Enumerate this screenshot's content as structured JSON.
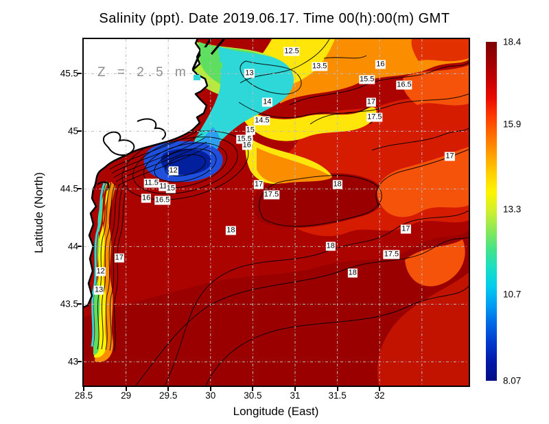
{
  "title": "Salinity (ppt). Date 2019.06.17. Time 00(h):00(m) GMT",
  "annotation": "Z = 2.5 m",
  "axes": {
    "x_label": "Longitude (East)",
    "y_label": "Latitude (North)",
    "x_ticks": [
      28.5,
      29,
      29.5,
      30,
      30.5,
      31,
      31.5,
      32
    ],
    "y_ticks": [
      45.5,
      45,
      44.5,
      44,
      43.5,
      43
    ],
    "grid_lons": [
      29,
      29.5,
      30,
      30.5,
      31,
      31.5,
      32,
      32.5
    ],
    "grid_lats": [
      45.5,
      45,
      44.5,
      44,
      43.5,
      43
    ]
  },
  "colorbar": {
    "min": 8.07,
    "max": 18.4,
    "ticks": [
      {
        "value": 18.4,
        "label": "18.4"
      },
      {
        "value": 15.9,
        "label": "15.9"
      },
      {
        "value": 13.3,
        "label": "13.3"
      },
      {
        "value": 10.7,
        "label": "10.7"
      },
      {
        "value": 8.07,
        "label": "8.07"
      }
    ],
    "gradient_top_to_bottom": [
      "#7e0000",
      "#9e0000",
      "#c40000",
      "#ea0c00",
      "#ff3c00",
      "#ff6f00",
      "#ffa000",
      "#ffd000",
      "#fdf500",
      "#cfef2f",
      "#8ae857",
      "#45e389",
      "#19dfc4",
      "#00ccee",
      "#009cf4",
      "#0066e4",
      "#0038cc",
      "#0018a8",
      "#000d86"
    ]
  },
  "map_colors": {
    "land": "#ffffff",
    "coastline": "#000000",
    "grid": "#bcbcbc",
    "deep_red_max_salinity": "#9a0000",
    "river_plume_blue": "#02209e"
  },
  "chart_data": {
    "type": "heatmap",
    "variable": "Salinity (ppt)",
    "date": "2019.06.17",
    "time": "00(h):00(m) GMT",
    "depth_m": 2.5,
    "title": "Salinity (ppt). Date 2019.06.17. Time 00(h):00(m) GMT",
    "xlabel": "Longitude (East)",
    "ylabel": "Latitude (North)",
    "x_range_east": [
      28.5,
      33.05
    ],
    "y_range_north": [
      42.8,
      45.8
    ],
    "value_range_ppt": [
      8.07,
      18.4
    ],
    "colorbar_labels": [
      18.4,
      15.9,
      13.3,
      10.7,
      8.07
    ],
    "contour_interval_ppt": 0.5,
    "grid_on": true,
    "legend_position": "right-colorbar",
    "contour_labels": [
      {
        "value": "12.5",
        "lon": 30.96,
        "lat": 45.69
      },
      {
        "value": "13",
        "lon": 30.46,
        "lat": 45.5
      },
      {
        "value": "13.5",
        "lon": 31.29,
        "lat": 45.56
      },
      {
        "value": "16",
        "lon": 32.01,
        "lat": 45.58
      },
      {
        "value": "15.5",
        "lon": 31.85,
        "lat": 45.45
      },
      {
        "value": "16.5",
        "lon": 32.29,
        "lat": 45.4
      },
      {
        "value": "14",
        "lon": 30.67,
        "lat": 45.25
      },
      {
        "value": "17",
        "lon": 31.9,
        "lat": 45.25
      },
      {
        "value": "17.5",
        "lon": 31.94,
        "lat": 45.12
      },
      {
        "value": "14.5",
        "lon": 30.61,
        "lat": 45.09
      },
      {
        "value": "15",
        "lon": 30.47,
        "lat": 45.01
      },
      {
        "value": "15.5",
        "lon": 30.4,
        "lat": 44.93
      },
      {
        "value": "16",
        "lon": 30.43,
        "lat": 44.88
      },
      {
        "value": "12",
        "lon": 29.56,
        "lat": 44.66
      },
      {
        "value": "11.5",
        "lon": 29.3,
        "lat": 44.55
      },
      {
        "value": "11",
        "lon": 29.44,
        "lat": 44.52
      },
      {
        "value": "15",
        "lon": 29.53,
        "lat": 44.5
      },
      {
        "value": "16",
        "lon": 29.24,
        "lat": 44.42
      },
      {
        "value": "16.5",
        "lon": 29.43,
        "lat": 44.4
      },
      {
        "value": "17",
        "lon": 32.83,
        "lat": 44.78
      },
      {
        "value": "17",
        "lon": 30.57,
        "lat": 44.54
      },
      {
        "value": "17.5",
        "lon": 30.72,
        "lat": 44.45
      },
      {
        "value": "18",
        "lon": 31.5,
        "lat": 44.54
      },
      {
        "value": "18",
        "lon": 30.24,
        "lat": 44.14
      },
      {
        "value": "17",
        "lon": 32.31,
        "lat": 44.15
      },
      {
        "value": "18",
        "lon": 31.42,
        "lat": 44.0
      },
      {
        "value": "17.5",
        "lon": 32.14,
        "lat": 43.93
      },
      {
        "value": "18",
        "lon": 31.68,
        "lat": 43.77
      },
      {
        "value": "17",
        "lon": 28.92,
        "lat": 43.9
      },
      {
        "value": "12",
        "lon": 28.7,
        "lat": 43.78
      },
      {
        "value": "13",
        "lon": 28.68,
        "lat": 43.62
      }
    ]
  }
}
